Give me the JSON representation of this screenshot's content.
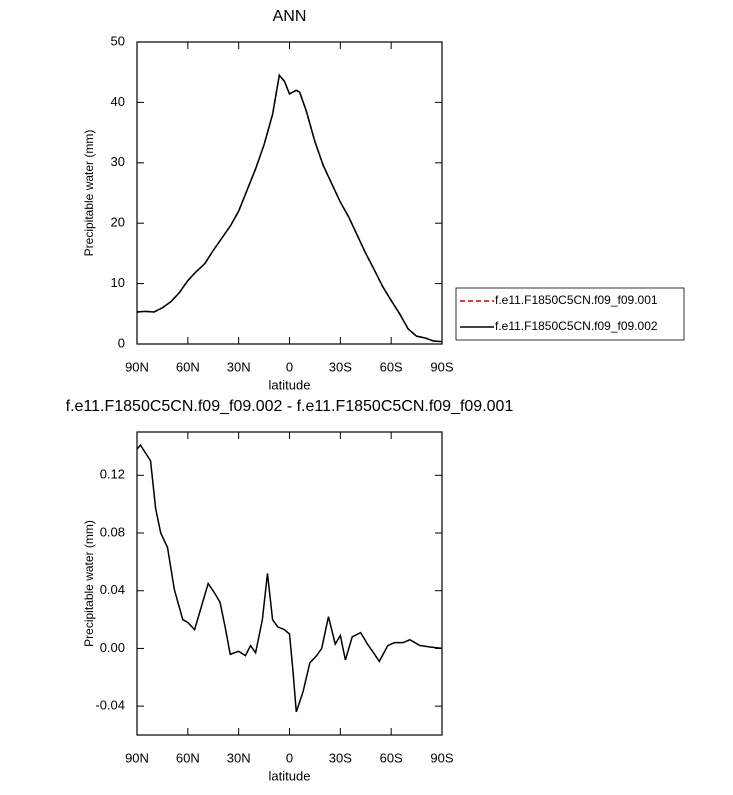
{
  "chart_data": [
    {
      "type": "line",
      "title": "ANN",
      "xlabel": "latitude",
      "ylabel": "Precipitable water (mm)",
      "x": [
        90,
        85,
        80,
        75,
        70,
        65,
        60,
        55,
        50,
        45,
        40,
        35,
        30,
        25,
        20,
        15,
        10,
        6,
        3,
        0,
        -2,
        -4,
        -6,
        -10,
        -15,
        -20,
        -25,
        -30,
        -35,
        -40,
        -45,
        -50,
        -55,
        -60,
        -65,
        -70,
        -75,
        -80,
        -85,
        -90
      ],
      "series": [
        {
          "name": "f.e11.F1850C5CN.f09_f09.001",
          "color": "#cc0000",
          "dash": true,
          "values": [
            5.3,
            5.4,
            5.3,
            6.0,
            7.0,
            8.5,
            10.5,
            12,
            13.3,
            15.5,
            17.5,
            19.5,
            22,
            25.5,
            29,
            33,
            38,
            44.5,
            43.5,
            41.4,
            41.7,
            42,
            41.7,
            38.5,
            33.5,
            29.5,
            26.5,
            23.5,
            21,
            18,
            15,
            12.3,
            9.5,
            7.2,
            5,
            2.5,
            1.3,
            1.0,
            0.5,
            0.4
          ]
        },
        {
          "name": "f.e11.F1850C5CN.f09_f09.002",
          "color": "#000000",
          "dash": false,
          "values": [
            5.3,
            5.4,
            5.3,
            6.0,
            7.0,
            8.5,
            10.5,
            12,
            13.3,
            15.5,
            17.5,
            19.5,
            22,
            25.5,
            29,
            33,
            38,
            44.5,
            43.5,
            41.4,
            41.7,
            42,
            41.7,
            38.5,
            33.5,
            29.5,
            26.5,
            23.5,
            21,
            18,
            15,
            12.3,
            9.5,
            7.2,
            5,
            2.5,
            1.3,
            1.0,
            0.5,
            0.4
          ]
        }
      ],
      "xlim": [
        90,
        -90
      ],
      "xticks": [
        {
          "value": 90,
          "label": "90N"
        },
        {
          "value": 60,
          "label": "60N"
        },
        {
          "value": 30,
          "label": "30N"
        },
        0,
        {
          "value": -30,
          "label": "30S"
        },
        {
          "value": -60,
          "label": "60S"
        },
        {
          "value": -90,
          "label": "90S"
        }
      ],
      "ylim": [
        0,
        50
      ],
      "yticks": [
        0,
        10,
        20,
        30,
        40,
        50
      ],
      "legend": "right"
    },
    {
      "type": "line",
      "title": "f.e11.F1850C5CN.f09_f09.002 - f.e11.F1850C5CN.f09_f09.001",
      "xlabel": "latitude",
      "ylabel": "Precipitable water (mm)",
      "x": [
        90,
        88,
        82,
        79,
        76,
        72,
        68,
        63,
        60,
        56,
        53,
        48,
        44,
        41,
        38,
        35,
        30,
        26,
        23,
        20,
        16,
        13,
        10,
        7,
        3,
        0,
        -2,
        -4,
        -8,
        -12,
        -16,
        -19,
        -23,
        -27,
        -30,
        -33,
        -37,
        -42,
        -46,
        -49,
        -53,
        -58,
        -62,
        -67,
        -71,
        -77,
        -83,
        -90
      ],
      "series": [
        {
          "color": "#000000",
          "dash": false,
          "values": [
            0.138,
            0.141,
            0.13,
            0.097,
            0.08,
            0.07,
            0.041,
            0.02,
            0.018,
            0.013,
            0.025,
            0.045,
            0.038,
            0.032,
            0.015,
            -0.004,
            -0.002,
            -0.005,
            0.002,
            -0.003,
            0.02,
            0.052,
            0.02,
            0.015,
            0.013,
            0.01,
            -0.015,
            -0.044,
            -0.03,
            -0.01,
            -0.005,
            0.0,
            0.022,
            0.003,
            0.009,
            -0.008,
            0.008,
            0.011,
            0.003,
            -0.002,
            -0.009,
            0.002,
            0.004,
            0.004,
            0.006,
            0.002,
            0.001,
            0.0
          ]
        }
      ],
      "xlim": [
        90,
        -90
      ],
      "xticks": [
        {
          "value": 90,
          "label": "90N"
        },
        {
          "value": 60,
          "label": "60N"
        },
        {
          "value": 30,
          "label": "30N"
        },
        0,
        {
          "value": -30,
          "label": "30S"
        },
        {
          "value": -60,
          "label": "60S"
        },
        {
          "value": -90,
          "label": "90S"
        }
      ],
      "ylim": [
        -0.06,
        0.15
      ],
      "yticks": [
        -0.04,
        {
          "value": 0,
          "label": "0.00"
        },
        0.04,
        0.08,
        0.12
      ]
    }
  ]
}
